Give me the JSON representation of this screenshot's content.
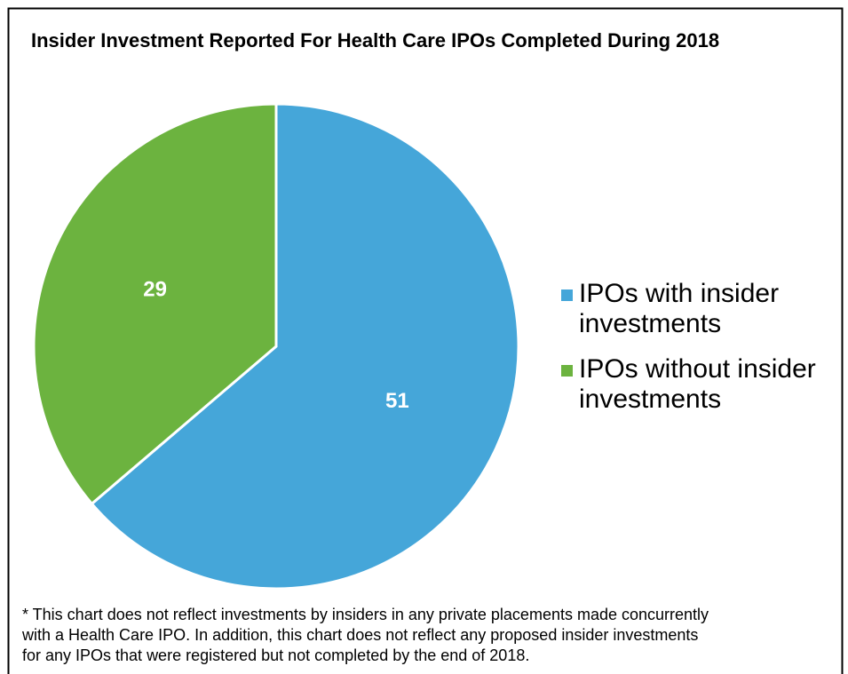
{
  "chart_data": {
    "type": "pie",
    "title": "Insider Investment Reported For Health Care IPOs Completed During 2018",
    "series": [
      {
        "name": "IPOs with insider investments",
        "color": "#45a6d9",
        "values": [
          51
        ]
      },
      {
        "name": "IPOs without insider investments",
        "color": "#6cb33f",
        "values": [
          29
        ]
      }
    ],
    "legend": "right",
    "footnote": [
      "* This chart does not reflect investments by insiders in any private placements made concurrently",
      "with a Health Care IPO. In addition, this chart does not reflect any proposed insider investments",
      "for any IPOs that were registered but not completed by the end of 2018."
    ]
  }
}
